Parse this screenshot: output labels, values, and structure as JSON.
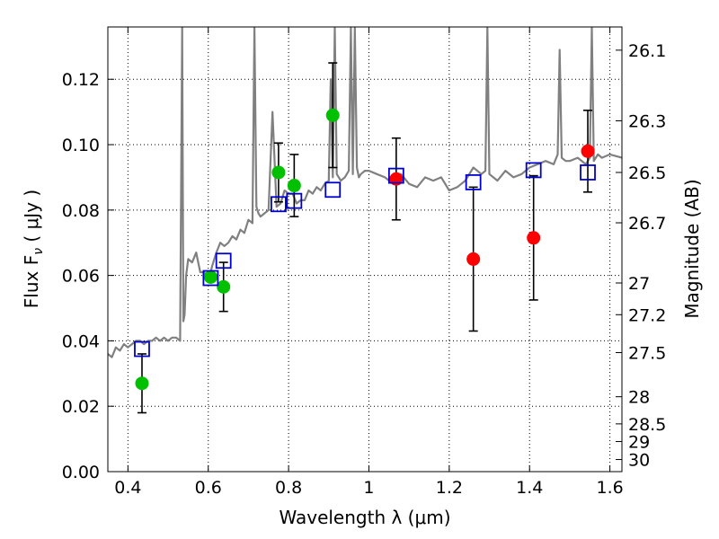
{
  "chart_data": {
    "type": "scatter",
    "xlabel": "Wavelength  λ (μm)",
    "ylabel": "Flux  F",
    "ylabel_sub": "ν",
    "ylabel_unit": " ( μJy )",
    "y2label": "Magnitude (AB)",
    "xlim": [
      0.35,
      1.63
    ],
    "ylim": [
      0.0,
      0.136
    ],
    "grid": true,
    "x_ticks": [
      0.4,
      0.6,
      0.8,
      1.0,
      1.2,
      1.4,
      1.6
    ],
    "x_tick_labels": [
      "0.4",
      "0.6",
      "0.8",
      "1",
      "1.2",
      "1.4",
      "1.6"
    ],
    "y_ticks": [
      0.0,
      0.02,
      0.04,
      0.06,
      0.08,
      0.1,
      0.12
    ],
    "y_tick_labels": [
      "0.00",
      "0.02",
      "0.04",
      "0.06",
      "0.08",
      "0.10",
      "0.12"
    ],
    "y2_ticks": [
      {
        "label": "26.1",
        "flux": 0.1289
      },
      {
        "label": "26.3",
        "flux": 0.1073
      },
      {
        "label": "26.5",
        "flux": 0.0915
      },
      {
        "label": "26.7",
        "flux": 0.0761
      },
      {
        "label": "27",
        "flux": 0.0577
      },
      {
        "label": "27.2",
        "flux": 0.048
      },
      {
        "label": "27.5",
        "flux": 0.0364
      },
      {
        "label": "28",
        "flux": 0.0229
      },
      {
        "label": "28.5",
        "flux": 0.0146
      },
      {
        "label": "29",
        "flux": 0.0092
      },
      {
        "label": "30",
        "flux": 0.0037
      }
    ],
    "series": [
      {
        "marker": "circle",
        "color": "#00c000",
        "points": [
          {
            "x": 0.435,
            "y": 0.027,
            "err": 0.009
          },
          {
            "x": 0.606,
            "y": 0.0595,
            "err": null
          },
          {
            "x": 0.638,
            "y": 0.0565,
            "err": 0.0075
          },
          {
            "x": 0.775,
            "y": 0.0915,
            "err": 0.009
          },
          {
            "x": 0.814,
            "y": 0.0875,
            "err": 0.0095
          },
          {
            "x": 0.91,
            "y": 0.109,
            "err": 0.016
          }
        ]
      },
      {
        "marker": "circle",
        "color": "#ff0000",
        "points": [
          {
            "x": 1.068,
            "y": 0.0895,
            "err": 0.0125
          },
          {
            "x": 1.26,
            "y": 0.065,
            "err": 0.022
          },
          {
            "x": 1.41,
            "y": 0.0715,
            "err": 0.019
          },
          {
            "x": 1.545,
            "y": 0.098,
            "err": 0.0125
          }
        ]
      },
      {
        "marker": "open-square",
        "color": "#0000cc",
        "points": [
          {
            "x": 0.435,
            "y": 0.0375
          },
          {
            "x": 0.606,
            "y": 0.0592
          },
          {
            "x": 0.638,
            "y": 0.0645
          },
          {
            "x": 0.775,
            "y": 0.0818
          },
          {
            "x": 0.814,
            "y": 0.0828
          },
          {
            "x": 0.91,
            "y": 0.0862
          },
          {
            "x": 1.068,
            "y": 0.0905
          },
          {
            "x": 1.26,
            "y": 0.0885
          },
          {
            "x": 1.41,
            "y": 0.0922
          },
          {
            "x": 1.545,
            "y": 0.0915
          }
        ]
      },
      {
        "type": "line",
        "color": "#808080",
        "x": [
          0.35,
          0.36,
          0.37,
          0.38,
          0.39,
          0.4,
          0.41,
          0.42,
          0.43,
          0.44,
          0.45,
          0.46,
          0.47,
          0.48,
          0.49,
          0.5,
          0.51,
          0.52,
          0.53,
          0.535,
          0.538,
          0.541,
          0.545,
          0.55,
          0.56,
          0.57,
          0.58,
          0.59,
          0.6,
          0.61,
          0.62,
          0.63,
          0.64,
          0.65,
          0.66,
          0.67,
          0.68,
          0.69,
          0.7,
          0.71,
          0.715,
          0.72,
          0.725,
          0.73,
          0.74,
          0.75,
          0.76,
          0.77,
          0.78,
          0.79,
          0.8,
          0.81,
          0.82,
          0.83,
          0.84,
          0.85,
          0.86,
          0.87,
          0.88,
          0.89,
          0.9,
          0.905,
          0.91,
          0.915,
          0.92,
          0.93,
          0.94,
          0.95,
          0.955,
          0.96,
          0.965,
          0.97,
          0.975,
          0.98,
          0.99,
          1.0,
          1.02,
          1.04,
          1.06,
          1.08,
          1.1,
          1.12,
          1.14,
          1.16,
          1.18,
          1.2,
          1.22,
          1.24,
          1.26,
          1.28,
          1.29,
          1.295,
          1.3,
          1.32,
          1.34,
          1.36,
          1.38,
          1.4,
          1.42,
          1.44,
          1.46,
          1.47,
          1.475,
          1.48,
          1.49,
          1.5,
          1.52,
          1.54,
          1.55,
          1.555,
          1.56,
          1.57,
          1.58,
          1.6,
          1.63
        ],
        "y": [
          0.036,
          0.035,
          0.038,
          0.037,
          0.039,
          0.038,
          0.039,
          0.04,
          0.04,
          0.039,
          0.04,
          0.04,
          0.041,
          0.04,
          0.041,
          0.04,
          0.041,
          0.041,
          0.04,
          0.136,
          0.046,
          0.048,
          0.06,
          0.065,
          0.064,
          0.067,
          0.061,
          0.061,
          0.058,
          0.063,
          0.067,
          0.07,
          0.069,
          0.07,
          0.072,
          0.071,
          0.074,
          0.073,
          0.077,
          0.076,
          0.136,
          0.081,
          0.079,
          0.078,
          0.079,
          0.08,
          0.11,
          0.081,
          0.082,
          0.086,
          0.085,
          0.085,
          0.082,
          0.083,
          0.083,
          0.086,
          0.085,
          0.087,
          0.086,
          0.088,
          0.089,
          0.12,
          0.09,
          0.136,
          0.091,
          0.089,
          0.09,
          0.092,
          0.136,
          0.091,
          0.136,
          0.093,
          0.09,
          0.091,
          0.092,
          0.092,
          0.091,
          0.09,
          0.088,
          0.091,
          0.088,
          0.087,
          0.09,
          0.089,
          0.09,
          0.086,
          0.087,
          0.089,
          0.093,
          0.091,
          0.092,
          0.136,
          0.091,
          0.089,
          0.092,
          0.09,
          0.091,
          0.093,
          0.094,
          0.095,
          0.094,
          0.097,
          0.129,
          0.096,
          0.095,
          0.095,
          0.096,
          0.094,
          0.096,
          0.136,
          0.095,
          0.097,
          0.096,
          0.097,
          0.096
        ]
      }
    ]
  }
}
